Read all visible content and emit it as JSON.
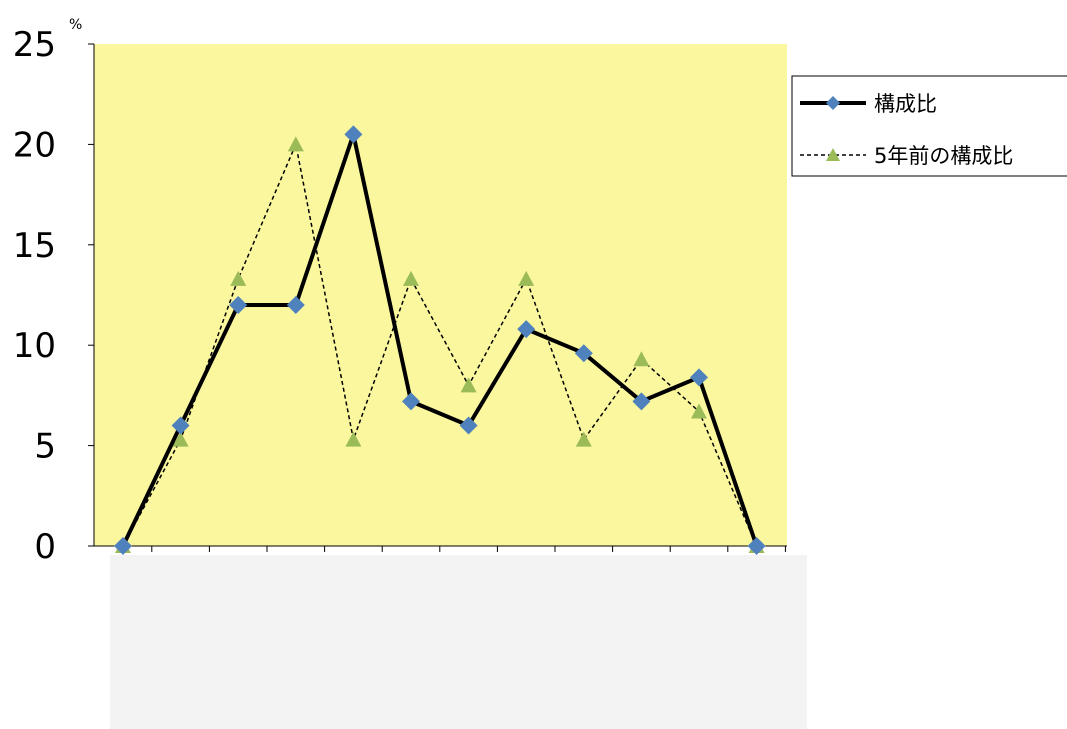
{
  "chart_data": {
    "type": "line",
    "title": "",
    "xlabel": "",
    "ylabel": "",
    "y_unit": "%",
    "ylim": [
      0,
      25
    ],
    "y_ticks": [
      "0",
      "5",
      "10",
      "15",
      "20",
      "25"
    ],
    "x_count": 12,
    "grid": false,
    "legend_position": "right",
    "plot_background": "#fbf79e",
    "below_axis_panel": "#f3f3f3",
    "series": [
      {
        "name": "構成比",
        "values": [
          0,
          6.0,
          12.0,
          12.0,
          20.5,
          7.2,
          6.0,
          10.8,
          9.6,
          7.2,
          8.4,
          0
        ],
        "line_color": "#000000",
        "line_style": "solid",
        "marker": "diamond",
        "marker_color": "#4f81bd"
      },
      {
        "name": "5年前の構成比",
        "values": [
          0,
          5.3,
          13.3,
          20.0,
          5.3,
          13.3,
          8.0,
          13.3,
          5.3,
          9.3,
          6.7,
          0
        ],
        "line_color": "#000000",
        "line_style": "dashed",
        "marker": "triangle",
        "marker_color": "#9bbb59"
      }
    ]
  }
}
